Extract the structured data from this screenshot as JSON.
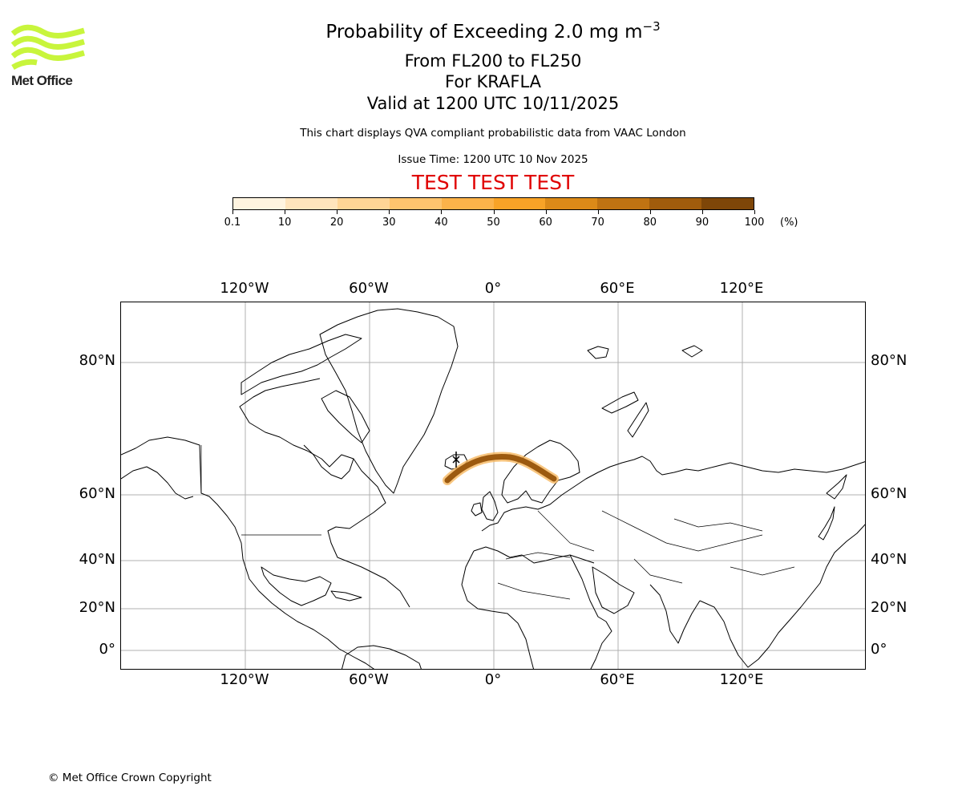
{
  "logo": {
    "text": "Met Office",
    "wave_color": "#c8f53c"
  },
  "header": {
    "title_main": "Probability of Exceeding 2.0 mg m",
    "title_sup": "−3",
    "level": "From FL200 to FL250",
    "volcano": "For KRAFLA",
    "valid": "Valid at 1200 UTC 10/11/2025",
    "description": "This chart displays QVA compliant probabilistic data from VAAC London",
    "issue": "Issue Time: 1200 UTC 10 Nov 2025",
    "test_banner": "TEST TEST TEST",
    "test_color": "#e00000"
  },
  "colorbar": {
    "labels": [
      "0.1",
      "10",
      "20",
      "30",
      "40",
      "50",
      "60",
      "70",
      "80",
      "90",
      "100"
    ],
    "colors": [
      "#fff4e0",
      "#ffe4bc",
      "#ffd596",
      "#fec46e",
      "#fcb34a",
      "#f8a327",
      "#dc8a18",
      "#c07312",
      "#a05c0c",
      "#7e4608",
      "#5e3206"
    ],
    "unit": "(%)"
  },
  "map": {
    "lon_labels": [
      "120°W",
      "60°W",
      "0°",
      "60°E",
      "120°E"
    ],
    "lat_labels": [
      "80°N",
      "60°N",
      "40°N",
      "20°N",
      "0°"
    ],
    "plume_color": "#9c5a10"
  },
  "footer": {
    "copyright": "© Met Office Crown Copyright"
  }
}
